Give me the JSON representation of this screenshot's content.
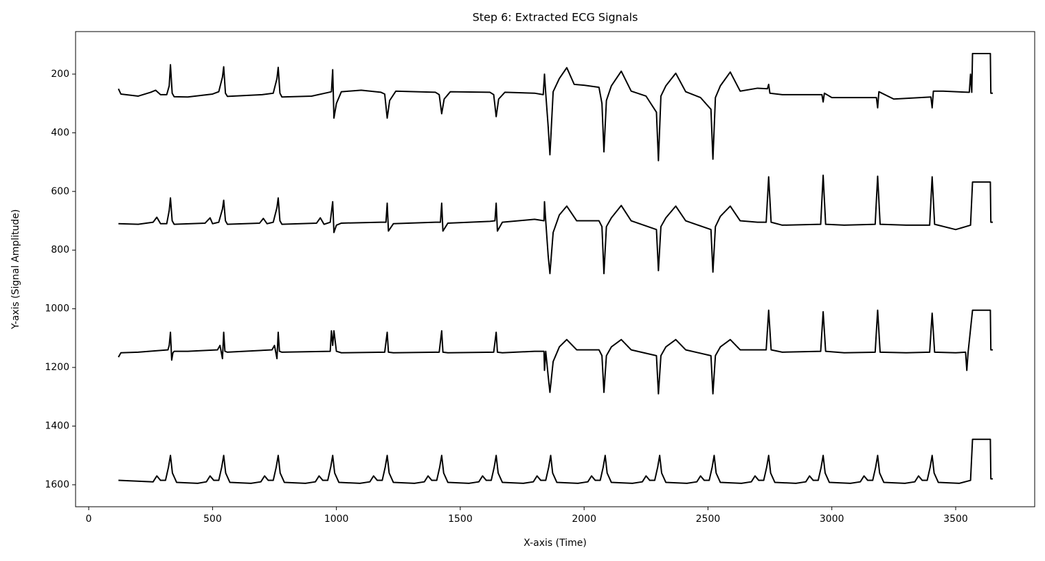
{
  "chart_data": {
    "type": "line",
    "title": "Step 6: Extracted ECG Signals",
    "x_label": "X-axis (Time)",
    "y_label": "Y-axis (Signal Amplitude)",
    "xlim": [
      -53,
      3819
    ],
    "ylim": [
      55,
      1675
    ],
    "y_inverted": true,
    "xticks": [
      0,
      500,
      1000,
      1500,
      2000,
      2500,
      3000,
      3500
    ],
    "yticks": [
      200,
      400,
      600,
      800,
      1000,
      1200,
      1400,
      1600
    ],
    "grid": false,
    "line_width": 2,
    "series": [
      {
        "color": "#000000",
        "x": [
          120,
          130,
          200,
          250,
          270,
          290,
          315,
          325,
          330,
          337,
          345,
          400,
          500,
          525,
          540,
          545,
          552,
          560,
          700,
          745,
          760,
          765,
          772,
          780,
          900,
          970,
          980,
          985,
          990,
          1000,
          1020,
          1100,
          1180,
          1195,
          1205,
          1215,
          1240,
          1400,
          1415,
          1425,
          1435,
          1460,
          1620,
          1635,
          1645,
          1655,
          1680,
          1800,
          1835,
          1840,
          1845,
          1855,
          1862,
          1875,
          1900,
          1930,
          1960,
          2000,
          2060,
          2072,
          2080,
          2090,
          2110,
          2150,
          2190,
          2250,
          2292,
          2300,
          2310,
          2330,
          2370,
          2410,
          2470,
          2512,
          2520,
          2530,
          2550,
          2590,
          2630,
          2700,
          2740,
          2745,
          2750,
          2800,
          2960,
          2965,
          2970,
          3000,
          3180,
          3185,
          3190,
          3250,
          3400,
          3405,
          3410,
          3450,
          3550,
          3555,
          3560,
          3565,
          3568,
          3640,
          3642,
          3650
        ],
        "values": [
          250,
          268,
          275,
          262,
          255,
          270,
          270,
          240,
          168,
          265,
          277,
          278,
          268,
          260,
          210,
          175,
          265,
          276,
          270,
          265,
          215,
          177,
          265,
          278,
          275,
          262,
          260,
          185,
          350,
          300,
          260,
          255,
          262,
          268,
          350,
          290,
          258,
          262,
          270,
          335,
          285,
          260,
          262,
          270,
          345,
          285,
          262,
          265,
          270,
          200,
          265,
          380,
          475,
          260,
          215,
          178,
          235,
          238,
          245,
          300,
          465,
          290,
          240,
          190,
          258,
          275,
          330,
          495,
          275,
          240,
          197,
          260,
          280,
          320,
          490,
          280,
          240,
          193,
          258,
          248,
          250,
          235,
          265,
          270,
          270,
          295,
          265,
          280,
          280,
          315,
          260,
          285,
          278,
          315,
          258,
          258,
          262,
          262,
          200,
          262,
          130,
          130,
          265,
          265
        ]
      },
      {
        "color": "#000000",
        "x": [
          120,
          200,
          260,
          275,
          290,
          315,
          325,
          330,
          337,
          345,
          470,
          490,
          500,
          525,
          540,
          545,
          552,
          560,
          690,
          705,
          720,
          745,
          760,
          765,
          772,
          780,
          920,
          935,
          950,
          975,
          985,
          990,
          1000,
          1020,
          1180,
          1200,
          1205,
          1210,
          1230,
          1400,
          1420,
          1425,
          1430,
          1450,
          1620,
          1640,
          1645,
          1650,
          1670,
          1800,
          1838,
          1840,
          1845,
          1855,
          1862,
          1875,
          1900,
          1930,
          1970,
          2060,
          2072,
          2080,
          2090,
          2110,
          2150,
          2190,
          2292,
          2300,
          2310,
          2330,
          2370,
          2410,
          2512,
          2520,
          2530,
          2550,
          2590,
          2630,
          2700,
          2735,
          2745,
          2755,
          2800,
          2955,
          2965,
          2975,
          3050,
          3175,
          3185,
          3195,
          3300,
          3395,
          3405,
          3415,
          3500,
          3560,
          3568,
          3640,
          3642,
          3650
        ],
        "values": [
          710,
          712,
          705,
          688,
          710,
          710,
          665,
          622,
          700,
          712,
          708,
          690,
          710,
          705,
          660,
          630,
          700,
          712,
          708,
          692,
          710,
          705,
          655,
          622,
          700,
          712,
          708,
          690,
          712,
          705,
          635,
          740,
          715,
          708,
          705,
          705,
          640,
          735,
          710,
          705,
          705,
          640,
          735,
          708,
          702,
          700,
          640,
          735,
          705,
          695,
          700,
          635,
          700,
          820,
          880,
          740,
          680,
          650,
          700,
          700,
          720,
          880,
          720,
          690,
          648,
          700,
          730,
          870,
          720,
          690,
          650,
          700,
          730,
          875,
          720,
          685,
          650,
          700,
          705,
          705,
          550,
          705,
          715,
          712,
          545,
          712,
          715,
          712,
          548,
          712,
          715,
          715,
          550,
          712,
          730,
          715,
          568,
          568,
          705,
          705
        ]
      },
      {
        "color": "#000000",
        "x": [
          120,
          130,
          200,
          320,
          325,
          330,
          335,
          340,
          345,
          400,
          520,
          530,
          540,
          545,
          550,
          560,
          740,
          750,
          760,
          765,
          770,
          780,
          975,
          980,
          985,
          990,
          1000,
          1020,
          1195,
          1205,
          1210,
          1230,
          1415,
          1425,
          1430,
          1450,
          1635,
          1645,
          1650,
          1670,
          1800,
          1838,
          1840,
          1845,
          1855,
          1862,
          1875,
          1900,
          1930,
          1970,
          2060,
          2072,
          2080,
          2090,
          2110,
          2150,
          2190,
          2292,
          2300,
          2310,
          2330,
          2370,
          2410,
          2512,
          2520,
          2530,
          2550,
          2590,
          2630,
          2700,
          2735,
          2745,
          2755,
          2800,
          2955,
          2965,
          2975,
          3050,
          3175,
          3185,
          3195,
          3300,
          3395,
          3405,
          3415,
          3500,
          3540,
          3545,
          3550,
          3568,
          3640,
          3642,
          3650
        ],
        "values": [
          1165,
          1150,
          1148,
          1140,
          1125,
          1080,
          1175,
          1150,
          1145,
          1145,
          1140,
          1125,
          1170,
          1080,
          1145,
          1148,
          1140,
          1125,
          1170,
          1080,
          1145,
          1148,
          1145,
          1075,
          1125,
          1075,
          1145,
          1150,
          1148,
          1080,
          1148,
          1150,
          1148,
          1075,
          1148,
          1150,
          1148,
          1080,
          1148,
          1150,
          1145,
          1145,
          1210,
          1145,
          1230,
          1285,
          1180,
          1130,
          1105,
          1140,
          1140,
          1160,
          1285,
          1160,
          1130,
          1105,
          1140,
          1160,
          1290,
          1160,
          1130,
          1105,
          1140,
          1160,
          1290,
          1160,
          1130,
          1105,
          1140,
          1140,
          1140,
          1005,
          1140,
          1148,
          1145,
          1010,
          1145,
          1150,
          1148,
          1005,
          1148,
          1150,
          1148,
          1015,
          1148,
          1150,
          1148,
          1210,
          1150,
          1005,
          1005,
          1140,
          1140
        ]
      },
      {
        "color": "#000000",
        "x": [
          120,
          260,
          275,
          290,
          310,
          322,
          330,
          338,
          355,
          440,
          475,
          490,
          505,
          525,
          537,
          545,
          553,
          570,
          655,
          695,
          710,
          725,
          745,
          757,
          765,
          773,
          790,
          875,
          915,
          930,
          945,
          965,
          977,
          985,
          993,
          1010,
          1095,
          1135,
          1150,
          1165,
          1185,
          1197,
          1205,
          1213,
          1230,
          1315,
          1355,
          1370,
          1385,
          1405,
          1417,
          1425,
          1433,
          1450,
          1535,
          1575,
          1590,
          1605,
          1625,
          1637,
          1645,
          1653,
          1670,
          1755,
          1795,
          1810,
          1825,
          1845,
          1857,
          1865,
          1873,
          1890,
          1975,
          2015,
          2030,
          2045,
          2065,
          2077,
          2085,
          2093,
          2110,
          2195,
          2235,
          2250,
          2265,
          2285,
          2297,
          2305,
          2313,
          2330,
          2415,
          2455,
          2470,
          2485,
          2505,
          2517,
          2525,
          2533,
          2550,
          2635,
          2675,
          2690,
          2705,
          2725,
          2737,
          2745,
          2753,
          2770,
          2855,
          2895,
          2910,
          2925,
          2945,
          2957,
          2965,
          2973,
          2990,
          3075,
          3115,
          3130,
          3145,
          3165,
          3177,
          3185,
          3193,
          3210,
          3295,
          3335,
          3350,
          3365,
          3385,
          3397,
          3405,
          3413,
          3430,
          3515,
          3560,
          3568,
          3640,
          3642,
          3650
        ],
        "values": [
          1585,
          1590,
          1570,
          1585,
          1585,
          1540,
          1500,
          1560,
          1592,
          1595,
          1590,
          1570,
          1585,
          1585,
          1540,
          1500,
          1560,
          1592,
          1595,
          1590,
          1570,
          1585,
          1585,
          1540,
          1500,
          1560,
          1592,
          1595,
          1590,
          1570,
          1585,
          1585,
          1540,
          1500,
          1560,
          1592,
          1595,
          1590,
          1570,
          1585,
          1585,
          1540,
          1500,
          1560,
          1592,
          1595,
          1590,
          1570,
          1585,
          1585,
          1540,
          1500,
          1560,
          1592,
          1595,
          1590,
          1570,
          1585,
          1585,
          1540,
          1500,
          1560,
          1592,
          1595,
          1590,
          1570,
          1585,
          1585,
          1540,
          1500,
          1560,
          1592,
          1595,
          1590,
          1570,
          1585,
          1585,
          1540,
          1500,
          1560,
          1592,
          1595,
          1590,
          1570,
          1585,
          1585,
          1540,
          1500,
          1560,
          1592,
          1595,
          1590,
          1570,
          1585,
          1585,
          1540,
          1500,
          1560,
          1592,
          1595,
          1590,
          1570,
          1585,
          1585,
          1540,
          1500,
          1560,
          1592,
          1595,
          1590,
          1570,
          1585,
          1585,
          1540,
          1500,
          1560,
          1592,
          1595,
          1590,
          1570,
          1585,
          1585,
          1540,
          1500,
          1560,
          1592,
          1595,
          1590,
          1570,
          1585,
          1585,
          1540,
          1500,
          1560,
          1592,
          1595,
          1585,
          1445,
          1445,
          1580,
          1580
        ]
      }
    ]
  }
}
